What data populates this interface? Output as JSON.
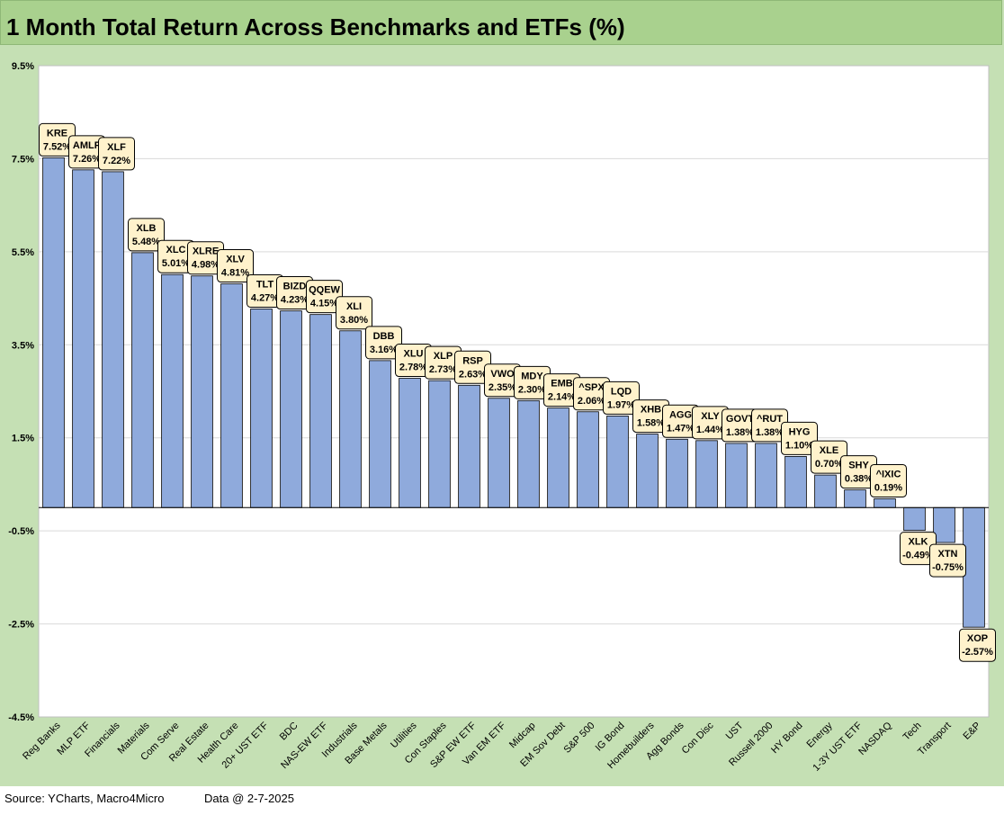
{
  "title": "1 Month Total Return Across Benchmarks and ETFs (%)",
  "footer": {
    "source": "Source: YCharts, Macro4Micro",
    "data_as_of": "Data @ 2-7-2025"
  },
  "colors": {
    "bar": "#8faadc",
    "bar_outline": "#000000",
    "label_fill": "#fff2cc",
    "background": "#c5e0b4",
    "title_bar": "#a9d18e"
  },
  "chart_data": {
    "type": "bar",
    "title": "1 Month Total Return Across Benchmarks and ETFs (%)",
    "xlabel": "",
    "ylabel": "",
    "ylim": [
      -4.5,
      9.5
    ],
    "yticks": [
      "9.5%",
      "7.5%",
      "5.5%",
      "3.5%",
      "1.5%",
      "-0.5%",
      "-2.5%",
      "-4.5%"
    ],
    "ytick_values": [
      9.5,
      7.5,
      5.5,
      3.5,
      1.5,
      -0.5,
      -2.5,
      -4.5
    ],
    "grid": true,
    "categories": [
      "Reg Banks",
      "MLP ETF",
      "Financials",
      "Materials",
      "Com Serve",
      "Real Estate",
      "Health Care",
      "20+ UST ETF",
      "BDC",
      "NAS-EW ETF",
      "Industrials",
      "Base Metals",
      "Utilities",
      "Con Staples",
      "S&P EW ETF",
      "Van EM ETF",
      "Midcap",
      "EM Sov Debt",
      "S&P 500",
      "IG Bond",
      "Homebuilders",
      "Agg Bonds",
      "Con Disc",
      "UST",
      "Russell 2000",
      "HY Bond",
      "Energy",
      "1-3Y UST ETF",
      "NASDAQ",
      "Tech",
      "Transport",
      "E&P"
    ],
    "tickers": [
      "KRE",
      "AMLP",
      "XLF",
      "XLB",
      "XLC",
      "XLRE",
      "XLV",
      "TLT",
      "BIZD",
      "QQEW",
      "XLI",
      "DBB",
      "XLU",
      "XLP",
      "RSP",
      "VWO",
      "MDY",
      "EMB",
      "^SPX",
      "LQD",
      "XHB",
      "AGG",
      "XLY",
      "GOVT",
      "^RUT",
      "HYG",
      "XLE",
      "SHY",
      "^IXIC",
      "XLK",
      "XTN",
      "XOP"
    ],
    "value_labels": [
      "7.52%",
      "7.26%",
      "7.22%",
      "5.48%",
      "5.01%",
      "4.98%",
      "4.81%",
      "4.27%",
      "4.23%",
      "4.15%",
      "3.80%",
      "3.16%",
      "2.78%",
      "2.73%",
      "2.63%",
      "2.35%",
      "2.30%",
      "2.14%",
      "2.06%",
      "1.97%",
      "1.58%",
      "1.47%",
      "1.44%",
      "1.38%",
      "1.38%",
      "1.10%",
      "0.70%",
      "0.38%",
      "0.19%",
      "-0.49%",
      "-0.75%",
      "-2.57%"
    ],
    "values": [
      7.52,
      7.26,
      7.22,
      5.48,
      5.01,
      4.98,
      4.81,
      4.27,
      4.23,
      4.15,
      3.8,
      3.16,
      2.78,
      2.73,
      2.63,
      2.35,
      2.3,
      2.14,
      2.06,
      1.97,
      1.58,
      1.47,
      1.44,
      1.38,
      1.38,
      1.1,
      0.7,
      0.38,
      0.19,
      -0.49,
      -0.75,
      -2.57
    ]
  }
}
